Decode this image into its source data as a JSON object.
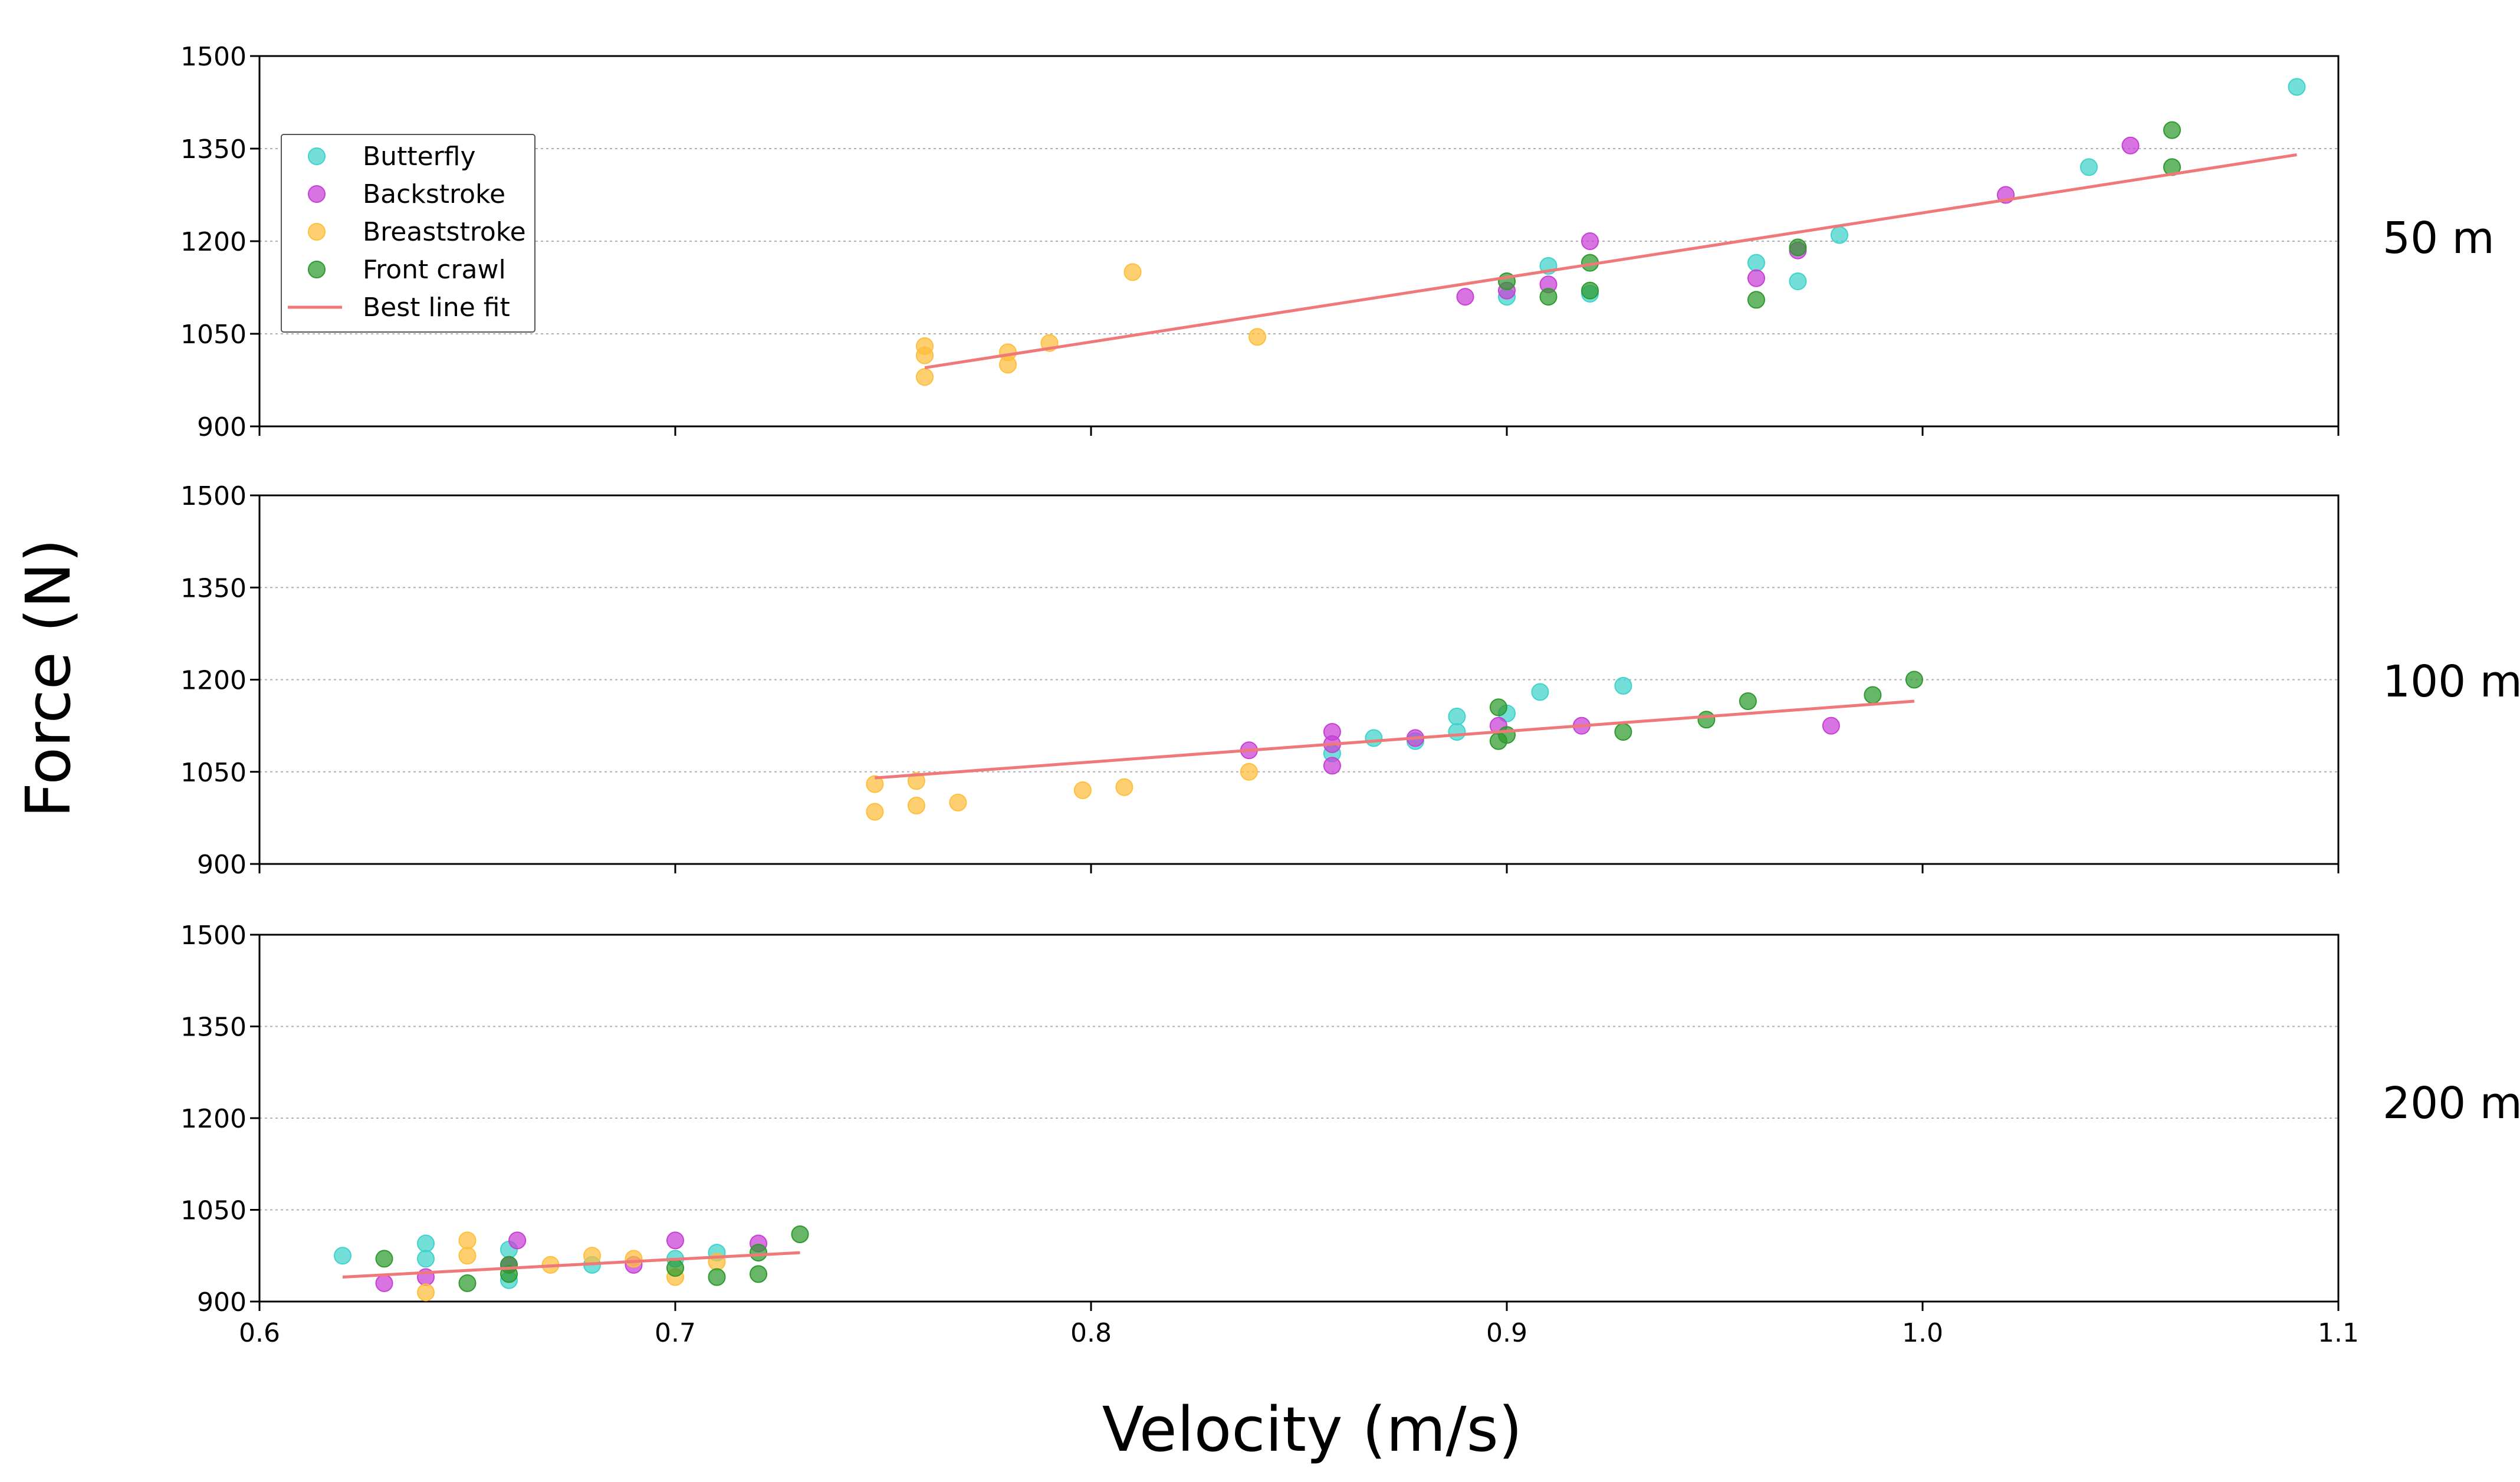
{
  "chart_data": {
    "type": "scatter",
    "xlabel": "Velocity (m/s)",
    "ylabel": "Force (N)",
    "xlim": [
      0.6,
      1.1
    ],
    "xticks": [
      "0.6",
      "0.7",
      "0.8",
      "0.9",
      "1.0",
      "1.1"
    ],
    "ylim": [
      900,
      1500
    ],
    "yticks": [
      "900",
      "1050",
      "1200",
      "1350",
      "1500"
    ],
    "grid": "horizontal dotted",
    "legend": {
      "placement": "top-left of first panel",
      "entries": [
        "Butterfly",
        "Backstroke",
        "Breaststroke",
        "Front crawl",
        "Best line fit"
      ]
    },
    "colors": {
      "Butterfly": "#3fd3cb",
      "Backstroke": "#c83fd6",
      "Breaststroke": "#ffbe3c",
      "Front crawl": "#2e9a2e",
      "Best line fit": "#f07878"
    },
    "panels": [
      {
        "label": "50 m",
        "fit": {
          "x": [
            0.76,
            1.09
          ],
          "y": [
            995,
            1340
          ]
        },
        "series": [
          {
            "name": "Butterfly",
            "x": [
              0.9,
              0.91,
              0.92,
              0.96,
              0.97,
              0.98,
              1.04,
              1.09
            ],
            "y": [
              1110,
              1160,
              1115,
              1165,
              1135,
              1210,
              1320,
              1450
            ]
          },
          {
            "name": "Backstroke",
            "x": [
              0.89,
              0.9,
              0.91,
              0.92,
              0.96,
              0.97,
              1.02,
              1.05
            ],
            "y": [
              1110,
              1120,
              1130,
              1200,
              1140,
              1185,
              1275,
              1355
            ]
          },
          {
            "name": "Breaststroke",
            "x": [
              0.76,
              0.76,
              0.76,
              0.78,
              0.78,
              0.79,
              0.81,
              0.84
            ],
            "y": [
              1030,
              1015,
              980,
              1020,
              1000,
              1035,
              1150,
              1045
            ]
          },
          {
            "name": "Front crawl",
            "x": [
              0.9,
              0.91,
              0.92,
              0.92,
              0.96,
              0.97,
              1.06,
              1.06
            ],
            "y": [
              1135,
              1110,
              1120,
              1165,
              1105,
              1190,
              1380,
              1320
            ]
          }
        ]
      },
      {
        "label": "100 m",
        "fit": {
          "x": [
            0.748,
            0.998
          ],
          "y": [
            1040,
            1165
          ]
        },
        "series": [
          {
            "name": "Butterfly",
            "x": [
              0.858,
              0.868,
              0.878,
              0.888,
              0.888,
              0.9,
              0.908,
              0.928
            ],
            "y": [
              1080,
              1105,
              1100,
              1140,
              1115,
              1145,
              1180,
              1190
            ]
          },
          {
            "name": "Backstroke",
            "x": [
              0.838,
              0.858,
              0.858,
              0.858,
              0.878,
              0.898,
              0.918,
              0.978
            ],
            "y": [
              1085,
              1115,
              1095,
              1060,
              1105,
              1125,
              1125,
              1125
            ]
          },
          {
            "name": "Breaststroke",
            "x": [
              0.748,
              0.748,
              0.758,
              0.758,
              0.768,
              0.798,
              0.808,
              0.838
            ],
            "y": [
              1030,
              985,
              1035,
              995,
              1000,
              1020,
              1025,
              1050
            ]
          },
          {
            "name": "Front crawl",
            "x": [
              0.898,
              0.898,
              0.9,
              0.928,
              0.948,
              0.958,
              0.988,
              0.998
            ],
            "y": [
              1100,
              1155,
              1110,
              1115,
              1135,
              1165,
              1175,
              1200
            ]
          }
        ]
      },
      {
        "label": "200 m",
        "fit": {
          "x": [
            0.62,
            0.73
          ],
          "y": [
            940,
            980
          ]
        },
        "series": [
          {
            "name": "Butterfly",
            "x": [
              0.62,
              0.64,
              0.64,
              0.66,
              0.66,
              0.68,
              0.7,
              0.71
            ],
            "y": [
              975,
              995,
              970,
              985,
              935,
              960,
              970,
              980
            ]
          },
          {
            "name": "Backstroke",
            "x": [
              0.63,
              0.64,
              0.66,
              0.662,
              0.69,
              0.7,
              0.72
            ],
            "y": [
              930,
              940,
              960,
              1000,
              960,
              1000,
              995
            ]
          },
          {
            "name": "Breaststroke",
            "x": [
              0.64,
              0.65,
              0.65,
              0.67,
              0.68,
              0.69,
              0.7,
              0.71
            ],
            "y": [
              915,
              1000,
              975,
              960,
              975,
              970,
              940,
              965
            ]
          },
          {
            "name": "Front crawl",
            "x": [
              0.63,
              0.65,
              0.66,
              0.66,
              0.7,
              0.71,
              0.72,
              0.72,
              0.73
            ],
            "y": [
              970,
              930,
              945,
              960,
              955,
              940,
              945,
              980,
              1010
            ]
          }
        ]
      }
    ]
  }
}
